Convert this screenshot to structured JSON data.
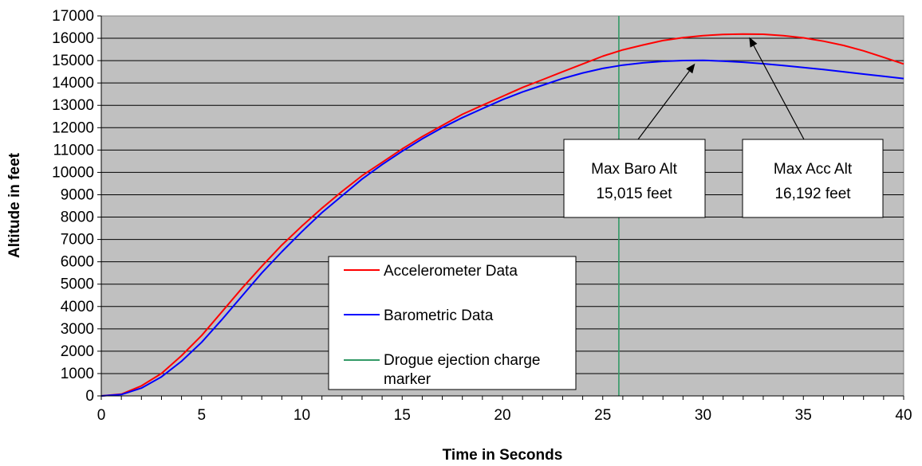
{
  "chart_data": {
    "type": "line",
    "xlabel": "Time in Seconds",
    "ylabel": "Altitude in feet",
    "xlim": [
      0,
      40
    ],
    "ylim": [
      0,
      17000
    ],
    "x_ticks": [
      "0",
      "5",
      "10",
      "15",
      "20",
      "25",
      "30",
      "35",
      "40"
    ],
    "y_ticks": [
      "0",
      "1000",
      "2000",
      "3000",
      "4000",
      "5000",
      "6000",
      "7000",
      "8000",
      "9000",
      "10000",
      "11000",
      "12000",
      "13000",
      "14000",
      "15000",
      "16000",
      "17000"
    ],
    "grid": true,
    "legend_position": "bottom-center",
    "series": [
      {
        "name": "Accelerometer Data",
        "color": "#ff0000",
        "x": [
          0,
          1,
          2,
          3,
          4,
          5,
          6,
          7,
          8,
          9,
          10,
          11,
          12,
          13,
          14,
          15,
          16,
          17,
          18,
          19,
          20,
          21,
          22,
          23,
          24,
          25,
          26,
          27,
          28,
          29,
          30,
          31,
          32,
          33,
          34,
          35,
          36,
          37,
          38,
          39,
          40
        ],
        "y": [
          0,
          80,
          450,
          1000,
          1800,
          2700,
          3750,
          4800,
          5800,
          6750,
          7600,
          8400,
          9150,
          9850,
          10450,
          11050,
          11600,
          12100,
          12600,
          13000,
          13400,
          13800,
          14150,
          14500,
          14850,
          15200,
          15480,
          15700,
          15900,
          16030,
          16120,
          16170,
          16192,
          16180,
          16120,
          16020,
          15870,
          15680,
          15440,
          15150,
          14850
        ]
      },
      {
        "name": "Barometric Data",
        "color": "#0000ff",
        "x": [
          0,
          1,
          2,
          3,
          4,
          5,
          6,
          7,
          8,
          9,
          10,
          11,
          12,
          13,
          14,
          15,
          16,
          17,
          18,
          19,
          20,
          21,
          22,
          23,
          24,
          25,
          26,
          27,
          28,
          29,
          30,
          31,
          32,
          33,
          34,
          35,
          36,
          37,
          38,
          39,
          40
        ],
        "y": [
          0,
          60,
          350,
          850,
          1550,
          2400,
          3400,
          4450,
          5500,
          6450,
          7350,
          8200,
          8950,
          9700,
          10350,
          10950,
          11500,
          12000,
          12450,
          12850,
          13250,
          13600,
          13900,
          14200,
          14450,
          14650,
          14800,
          14900,
          14970,
          15005,
          15015,
          14980,
          14930,
          14860,
          14780,
          14690,
          14600,
          14500,
          14400,
          14300,
          14200
        ]
      },
      {
        "name": "Drogue ejection charge marker",
        "color": "#339966",
        "x": [
          25.8,
          25.8
        ],
        "y": [
          0,
          17000
        ]
      }
    ],
    "annotations": [
      {
        "line1": "Max Baro Alt",
        "line2": "15,015 feet",
        "target_x": 29.6,
        "target_y": 15015
      },
      {
        "line1": "Max Acc Alt",
        "line2": "16,192 feet",
        "target_x": 32.3,
        "target_y": 16192
      }
    ],
    "plot_bg": "#c0c0c0"
  }
}
